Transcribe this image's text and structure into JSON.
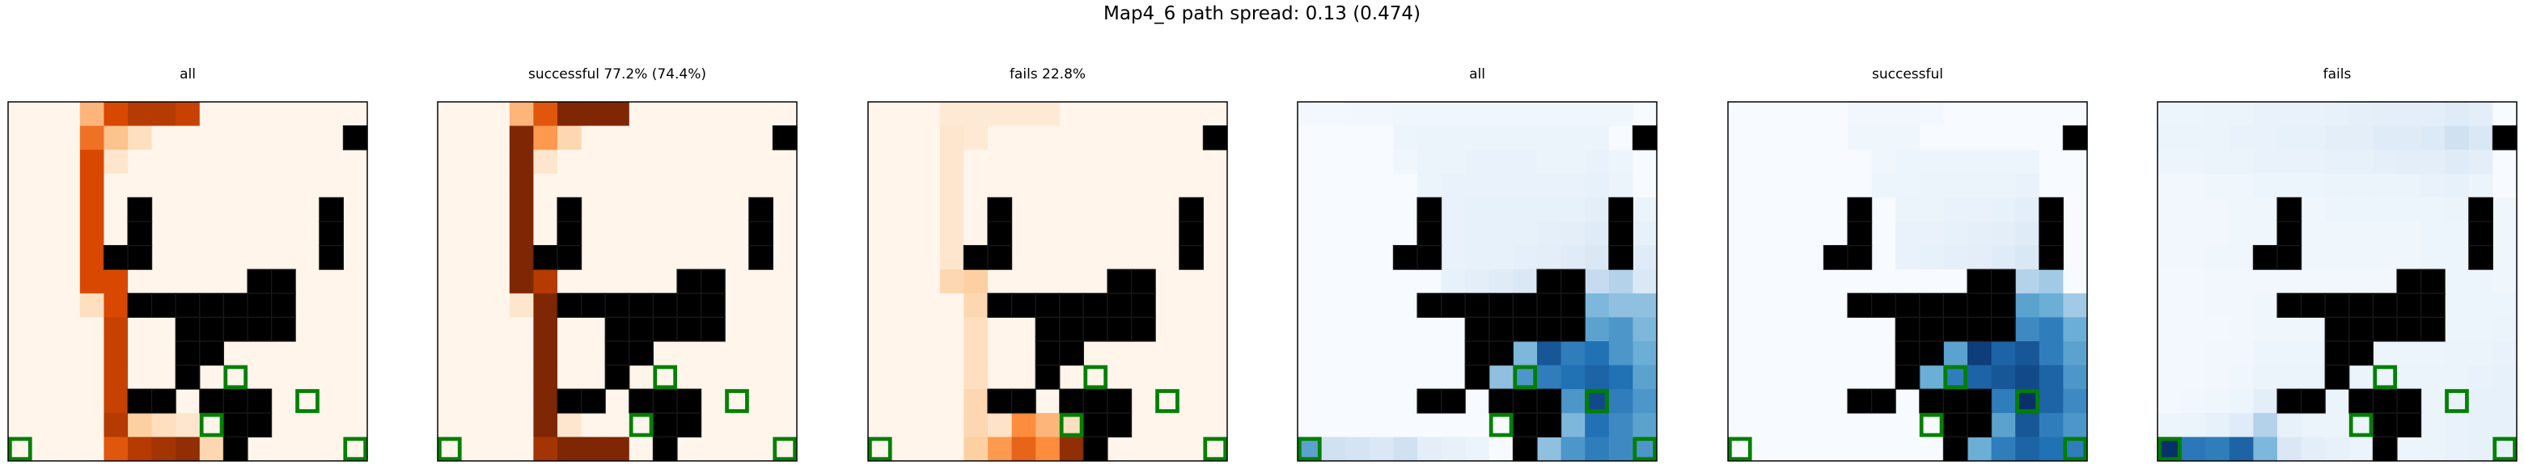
{
  "figure": {
    "title": "Map4_6 path spread: 0.13 (0.474)"
  },
  "colors": {
    "walls": "#000000",
    "goals": "#008000",
    "reds": [
      "#fff5eb",
      "#fdd0a2",
      "#fd8d3c",
      "#d94801",
      "#7f2704"
    ],
    "blues": [
      "#f7fbff",
      "#c6dbef",
      "#6baed6",
      "#2171b5",
      "#08306b"
    ]
  },
  "grid": {
    "size": 15,
    "walls": [
      [
        1,
        14
      ],
      [
        4,
        5
      ],
      [
        4,
        13
      ],
      [
        5,
        5
      ],
      [
        5,
        13
      ],
      [
        6,
        4
      ],
      [
        6,
        5
      ],
      [
        6,
        13
      ],
      [
        7,
        10
      ],
      [
        7,
        11
      ],
      [
        8,
        5
      ],
      [
        8,
        6
      ],
      [
        8,
        7
      ],
      [
        8,
        8
      ],
      [
        8,
        9
      ],
      [
        8,
        10
      ],
      [
        8,
        11
      ],
      [
        9,
        7
      ],
      [
        9,
        8
      ],
      [
        9,
        9
      ],
      [
        9,
        10
      ],
      [
        9,
        11
      ],
      [
        10,
        7
      ],
      [
        10,
        8
      ],
      [
        11,
        7
      ],
      [
        12,
        5
      ],
      [
        12,
        6
      ],
      [
        12,
        8
      ],
      [
        12,
        9
      ],
      [
        12,
        10
      ],
      [
        13,
        9
      ],
      [
        13,
        10
      ],
      [
        14,
        9
      ]
    ],
    "goals": [
      [
        14,
        0
      ],
      [
        11,
        9
      ],
      [
        13,
        8
      ],
      [
        12,
        12
      ],
      [
        14,
        14
      ]
    ]
  },
  "chart_data": [
    {
      "type": "heatmap",
      "title": "all",
      "colormap": "reds",
      "values": [
        [
          0,
          0,
          0,
          0,
          0,
          0,
          0,
          0,
          0,
          0,
          0,
          0,
          0,
          0,
          0
        ],
        [
          0,
          0,
          0,
          0,
          0,
          0,
          0,
          0,
          0,
          0,
          0,
          0,
          0,
          0,
          0
        ],
        [
          0,
          0,
          0,
          0,
          0,
          0,
          0,
          0,
          0,
          0,
          0,
          0,
          0,
          0,
          0
        ],
        [
          0,
          0,
          0,
          0,
          0,
          0,
          0,
          0,
          0,
          0,
          0,
          0,
          0,
          0,
          0
        ],
        [
          0,
          0,
          0,
          0,
          0,
          0,
          0,
          0,
          0,
          0,
          0,
          0,
          0,
          0,
          0
        ],
        [
          0,
          0,
          0,
          0,
          0,
          0,
          0,
          0,
          0,
          0,
          0,
          0,
          0,
          0,
          0
        ],
        [
          0,
          0,
          0,
          0,
          0,
          0,
          0,
          0,
          0,
          0,
          0,
          0,
          0,
          0,
          0
        ],
        [
          0,
          0,
          0,
          0,
          0,
          0,
          0,
          0,
          0,
          0,
          0,
          0,
          0,
          0,
          0
        ],
        [
          0,
          0,
          0,
          0,
          0,
          0,
          0,
          0,
          0,
          0,
          0,
          0,
          0,
          0,
          0
        ],
        [
          0,
          0,
          0,
          0,
          0,
          0,
          0,
          0,
          0,
          0,
          0,
          0,
          0,
          0,
          0
        ],
        [
          0,
          0,
          0,
          0,
          0,
          0,
          0,
          0,
          0,
          0,
          0,
          0,
          0,
          0,
          0
        ],
        [
          0,
          0,
          0,
          0,
          0,
          0,
          0,
          0,
          0,
          0,
          0,
          0,
          0,
          0,
          0
        ],
        [
          0,
          0,
          0,
          0,
          0,
          0,
          0,
          0,
          0,
          0,
          0,
          0,
          0,
          0,
          0
        ],
        [
          0,
          0,
          0,
          0,
          0,
          0,
          0,
          0,
          0,
          0,
          0,
          0,
          0,
          0,
          0
        ],
        [
          0,
          0,
          0,
          0,
          0,
          0,
          0,
          0,
          0,
          0,
          0,
          0,
          0,
          0,
          0
        ]
      ]
    },
    {
      "type": "heatmap",
      "title": "successful 77.2% (74.4%)",
      "colormap": "reds",
      "values": []
    },
    {
      "type": "heatmap",
      "title": "fails 22.8%",
      "colormap": "reds",
      "values": []
    },
    {
      "type": "heatmap",
      "title": "all",
      "colormap": "blues",
      "values": []
    },
    {
      "type": "heatmap",
      "title": "successful",
      "colormap": "blues",
      "values": []
    },
    {
      "type": "heatmap",
      "title": "fails",
      "colormap": "blues",
      "values": []
    }
  ]
}
